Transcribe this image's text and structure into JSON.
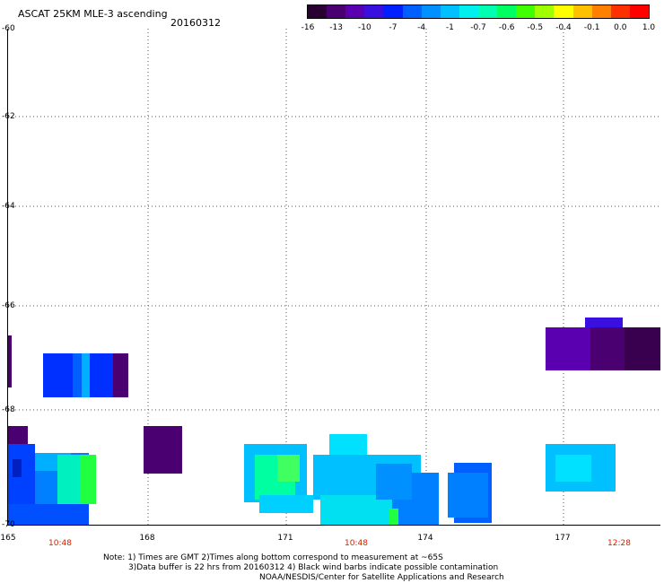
{
  "header": {
    "title": "ASCAT 25KM MLE-3 ascending",
    "date": "20160312"
  },
  "colorbar": {
    "colors": [
      "#2a0033",
      "#4a0070",
      "#5a00b0",
      "#3a10e0",
      "#0020ff",
      "#0060ff",
      "#0090ff",
      "#00c0ff",
      "#00f0f0",
      "#00ffb0",
      "#00ff60",
      "#40ff00",
      "#a0ff00",
      "#ffff00",
      "#ffc000",
      "#ff8000",
      "#ff3000",
      "#ff0000"
    ],
    "labels": [
      "-16",
      "-13",
      "-10",
      "-7",
      "-4",
      "-1",
      "-0.7",
      "-0.6",
      "-0.5",
      "-0.4",
      "-0.1",
      "0.0",
      "1.0"
    ]
  },
  "axes": {
    "lat_labels": [
      "-60",
      "-62",
      "-64",
      "-66",
      "-68",
      "-70"
    ],
    "lon_labels": [
      "165",
      "168",
      "171",
      "174",
      "177"
    ]
  },
  "times": [
    "10:48",
    "10:48",
    "12:28"
  ],
  "notes": {
    "line1": "Note: 1) Times are GMT 2)Times along bottom correspond to measurement at ~65S",
    "line2": "3)Data buffer is 22 hrs from 20160312 4) Black wind barbs indicate possible contamination",
    "line3": "NOAA/NESDIS/Center for Satellite Applications and Research"
  }
}
